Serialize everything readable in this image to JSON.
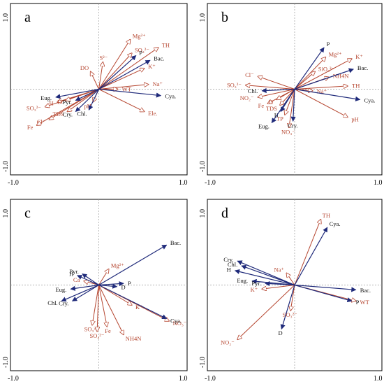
{
  "colors": {
    "env": "#b5452f",
    "species": "#1f2a7a"
  },
  "chart_data": [
    {
      "type": "scatter",
      "panel": "a",
      "xlim": [
        -1.0,
        1.0
      ],
      "ylim": [
        -1.0,
        1.0
      ],
      "tick_labels": {
        "x_min": "-1.0",
        "x_max": "1.0",
        "y_min": "-1.0",
        "y_max": "1.0"
      },
      "env": [
        {
          "label": "Mg²⁺",
          "x": 0.38,
          "y": 0.62
        },
        {
          "label": "TH",
          "x": 0.72,
          "y": 0.52
        },
        {
          "label": "SO₄²⁻",
          "x": 0.4,
          "y": 0.45
        },
        {
          "label": "K⁺",
          "x": 0.55,
          "y": 0.26
        },
        {
          "label": "S²⁻",
          "x": 0.05,
          "y": 0.34
        },
        {
          "label": "DO",
          "x": -0.1,
          "y": 0.22
        },
        {
          "label": "Na⁺",
          "x": 0.6,
          "y": 0.06
        },
        {
          "label": "WT",
          "x": 0.23,
          "y": 0.0
        },
        {
          "label": "Ele.",
          "x": 0.55,
          "y": -0.28
        },
        {
          "label": "pH",
          "x": -0.07,
          "y": -0.16
        },
        {
          "label": "TDS",
          "x": -0.38,
          "y": -0.28
        },
        {
          "label": "Cl⁻",
          "x": -0.6,
          "y": -0.38
        },
        {
          "label": "Fe",
          "x": -0.75,
          "y": -0.45
        },
        {
          "label": "SO₃²⁻",
          "x": -0.65,
          "y": -0.22
        },
        {
          "label": "H",
          "x": -0.5,
          "y": -0.16
        },
        {
          "label": "D",
          "x": -0.4,
          "y": -0.14
        }
      ],
      "species": [
        {
          "label": "P",
          "x": 0.45,
          "y": 0.42
        },
        {
          "label": "Bac.",
          "x": 0.62,
          "y": 0.36
        },
        {
          "label": "Cya.",
          "x": 0.75,
          "y": -0.08
        },
        {
          "label": "Eug.",
          "x": -0.52,
          "y": -0.1
        },
        {
          "label": "Pyr.",
          "x": -0.28,
          "y": -0.14
        },
        {
          "label": "Cry.",
          "x": -0.28,
          "y": -0.28
        },
        {
          "label": "Chl.",
          "x": -0.12,
          "y": -0.26
        }
      ]
    },
    {
      "type": "scatter",
      "panel": "b",
      "xlim": [
        -1.0,
        1.0
      ],
      "ylim": [
        -1.0,
        1.0
      ],
      "tick_labels": {
        "x_min": "-1.0",
        "x_max": "1.0",
        "y_min": "-1.0",
        "y_max": "1.0"
      },
      "env": [
        {
          "label": "Mg²⁺",
          "x": 0.38,
          "y": 0.4
        },
        {
          "label": "K⁺",
          "x": 0.7,
          "y": 0.38
        },
        {
          "label": "SiO₃²⁻",
          "x": 0.25,
          "y": 0.22
        },
        {
          "label": "NH4N",
          "x": 0.42,
          "y": 0.15
        },
        {
          "label": "TH",
          "x": 0.65,
          "y": 0.04
        },
        {
          "label": "Na⁺",
          "x": 0.22,
          "y": -0.02
        },
        {
          "label": "Cl⁻",
          "x": -0.45,
          "y": 0.16
        },
        {
          "label": "SO₃²⁻",
          "x": -0.6,
          "y": 0.05
        },
        {
          "label": "NO₂⁻",
          "x": -0.45,
          "y": -0.1
        },
        {
          "label": "Fe",
          "x": -0.33,
          "y": -0.18
        },
        {
          "label": "TDS",
          "x": -0.18,
          "y": -0.2
        },
        {
          "label": "D",
          "x": -0.22,
          "y": -0.13
        },
        {
          "label": "TP",
          "x": -0.12,
          "y": -0.32
        },
        {
          "label": "NO₃⁻",
          "x": -0.07,
          "y": -0.48
        },
        {
          "label": "pH",
          "x": 0.65,
          "y": -0.35
        }
      ],
      "species": [
        {
          "label": "P",
          "x": 0.36,
          "y": 0.52
        },
        {
          "label": "Bac.",
          "x": 0.72,
          "y": 0.25
        },
        {
          "label": "Cya.",
          "x": 0.8,
          "y": -0.13
        },
        {
          "label": "Chl.",
          "x": -0.4,
          "y": -0.02
        },
        {
          "label": "H",
          "x": -0.17,
          "y": -0.28
        },
        {
          "label": "Eug.",
          "x": -0.28,
          "y": -0.42
        },
        {
          "label": "Cry.",
          "x": -0.02,
          "y": -0.4
        }
      ]
    },
    {
      "type": "scatter",
      "panel": "c",
      "xlim": [
        -1.0,
        1.0
      ],
      "ylim": [
        -1.0,
        1.0
      ],
      "tick_labels": {
        "x_min": "-1.0",
        "x_max": "1.0",
        "y_min": "-1.0",
        "y_max": "1.0"
      },
      "env": [
        {
          "label": "Mg²⁺",
          "x": 0.12,
          "y": 0.2
        },
        {
          "label": "Ca",
          "x": -0.18,
          "y": 0.05
        },
        {
          "label": "K⁺",
          "x": 0.4,
          "y": -0.25
        },
        {
          "label": "NO₃⁻",
          "x": 0.85,
          "y": -0.45
        },
        {
          "label": "Fe",
          "x": 0.1,
          "y": -0.52
        },
        {
          "label": "NH4N",
          "x": 0.3,
          "y": -0.62
        },
        {
          "label": "SO₃²⁻",
          "x": -0.08,
          "y": -0.5
        },
        {
          "label": "SO₄²⁻",
          "x": -0.02,
          "y": -0.58
        }
      ],
      "species": [
        {
          "label": "Bac.",
          "x": 0.82,
          "y": 0.5
        },
        {
          "label": "Pyr.",
          "x": -0.2,
          "y": 0.14
        },
        {
          "label": "H",
          "x": -0.26,
          "y": 0.12
        },
        {
          "label": "Eug.",
          "x": -0.34,
          "y": -0.05
        },
        {
          "label": "Chl.",
          "x": -0.45,
          "y": -0.2
        },
        {
          "label": "Cry.",
          "x": -0.32,
          "y": -0.2
        },
        {
          "label": "P",
          "x": 0.3,
          "y": 0.02
        },
        {
          "label": "D",
          "x": 0.22,
          "y": -0.02
        },
        {
          "label": "Cya.",
          "x": 0.82,
          "y": -0.42
        }
      ]
    },
    {
      "type": "scatter",
      "panel": "d",
      "xlim": [
        -1.0,
        1.0
      ],
      "ylim": [
        -1.0,
        1.0
      ],
      "tick_labels": {
        "x_min": "-1.0",
        "x_max": "1.0",
        "y_min": "-1.0",
        "y_max": "1.0"
      },
      "env": [
        {
          "label": "TH",
          "x": 0.32,
          "y": 0.82
        },
        {
          "label": "Na⁺",
          "x": -0.1,
          "y": 0.15
        },
        {
          "label": "K⁺",
          "x": -0.4,
          "y": -0.05
        },
        {
          "label": "WT",
          "x": 0.75,
          "y": -0.2
        },
        {
          "label": "SO₃²⁻",
          "x": -0.05,
          "y": -0.32
        },
        {
          "label": "NO₂⁻",
          "x": -0.7,
          "y": -0.68
        }
      ],
      "species": [
        {
          "label": "Cya.",
          "x": 0.4,
          "y": 0.72
        },
        {
          "label": "Cry.",
          "x": -0.7,
          "y": 0.3
        },
        {
          "label": "Chl.",
          "x": -0.65,
          "y": 0.24
        },
        {
          "label": "H",
          "x": -0.73,
          "y": 0.18
        },
        {
          "label": "Eug.",
          "x": -0.52,
          "y": 0.05
        },
        {
          "label": "Pyr.",
          "x": -0.36,
          "y": 0.02
        },
        {
          "label": "Bac.",
          "x": 0.75,
          "y": -0.06
        },
        {
          "label": "P",
          "x": 0.7,
          "y": -0.2
        },
        {
          "label": "D",
          "x": -0.16,
          "y": -0.55
        }
      ]
    }
  ]
}
